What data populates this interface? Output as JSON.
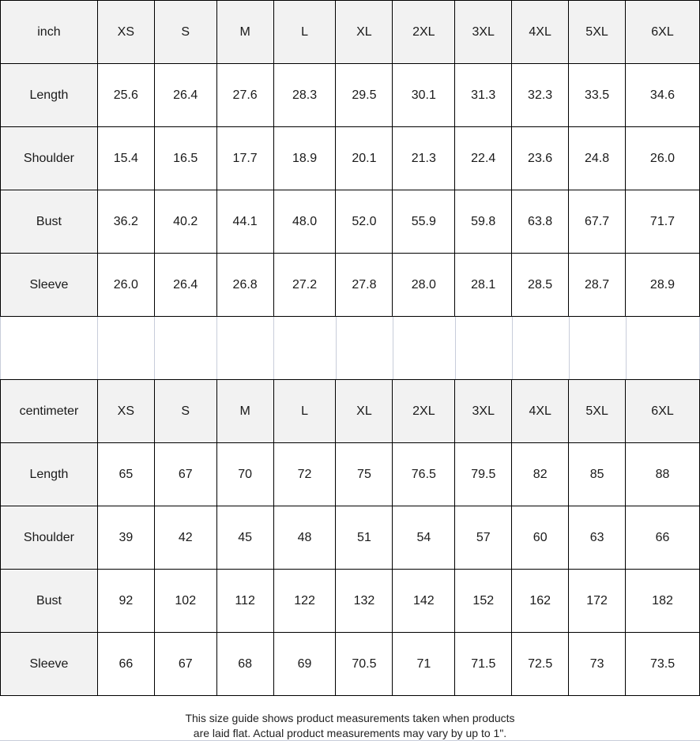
{
  "inch_table": {
    "unit_label": "inch",
    "sizes": [
      "XS",
      "S",
      "M",
      "L",
      "XL",
      "2XL",
      "3XL",
      "4XL",
      "5XL",
      "6XL"
    ],
    "rows": [
      {
        "label": "Length",
        "values": [
          "25.6",
          "26.4",
          "27.6",
          "28.3",
          "29.5",
          "30.1",
          "31.3",
          "32.3",
          "33.5",
          "34.6"
        ]
      },
      {
        "label": "Shoulder",
        "values": [
          "15.4",
          "16.5",
          "17.7",
          "18.9",
          "20.1",
          "21.3",
          "22.4",
          "23.6",
          "24.8",
          "26.0"
        ]
      },
      {
        "label": "Bust",
        "values": [
          "36.2",
          "40.2",
          "44.1",
          "48.0",
          "52.0",
          "55.9",
          "59.8",
          "63.8",
          "67.7",
          "71.7"
        ]
      },
      {
        "label": "Sleeve",
        "values": [
          "26.0",
          "26.4",
          "26.8",
          "27.2",
          "27.8",
          "28.0",
          "28.1",
          "28.5",
          "28.7",
          "28.9"
        ]
      }
    ]
  },
  "cm_table": {
    "unit_label": "centimeter",
    "sizes": [
      "XS",
      "S",
      "M",
      "L",
      "XL",
      "2XL",
      "3XL",
      "4XL",
      "5XL",
      "6XL"
    ],
    "rows": [
      {
        "label": "Length",
        "values": [
          "65",
          "67",
          "70",
          "72",
          "75",
          "76.5",
          "79.5",
          "82",
          "85",
          "88"
        ]
      },
      {
        "label": "Shoulder",
        "values": [
          "39",
          "42",
          "45",
          "48",
          "51",
          "54",
          "57",
          "60",
          "63",
          "66"
        ]
      },
      {
        "label": "Bust",
        "values": [
          "92",
          "102",
          "112",
          "122",
          "132",
          "142",
          "152",
          "162",
          "172",
          "182"
        ]
      },
      {
        "label": "Sleeve",
        "values": [
          "66",
          "67",
          "68",
          "69",
          "70.5",
          "71",
          "71.5",
          "72.5",
          "73",
          "73.5"
        ]
      }
    ]
  },
  "note": {
    "line1": "This size guide shows product measurements taken when products",
    "line2": "are laid flat. Actual product measurements may vary by up to 1\"."
  },
  "colors": {
    "header_bg": "#f2f2f2",
    "grid": "#000000",
    "gap_lines": "#c8cdda"
  }
}
